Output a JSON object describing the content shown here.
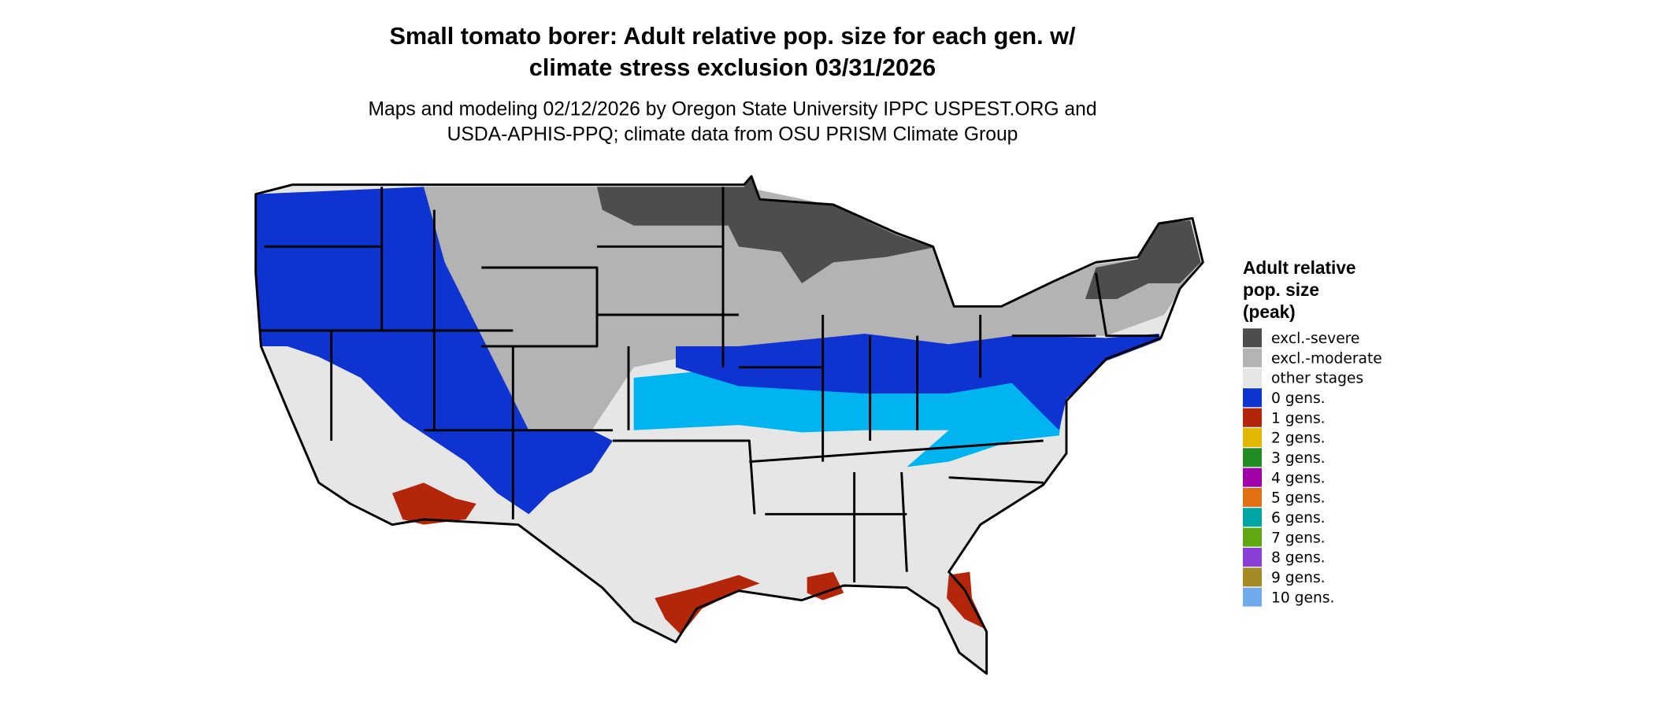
{
  "title": [
    "Small tomato borer: Adult relative pop. size for each gen. w/",
    "climate stress exclusion 03/31/2026"
  ],
  "subtitle": [
    "Maps and modeling 02/12/2026 by Oregon State University IPPC USPEST.ORG and",
    "USDA-APHIS-PPQ; climate data from OSU PRISM Climate Group"
  ],
  "legend": {
    "title": [
      "Adult relative",
      "pop. size",
      "(peak)"
    ],
    "items": [
      {
        "label": "excl.-severe",
        "color": "#4d4d4d"
      },
      {
        "label": "excl.-moderate",
        "color": "#b3b3b3"
      },
      {
        "label": "other stages",
        "color": "#e6e6e6"
      },
      {
        "label": "0 gens.",
        "color": "#0f33d0"
      },
      {
        "label": "1 gens.",
        "color": "#b3260a"
      },
      {
        "label": "2 gens.",
        "color": "#e0b800"
      },
      {
        "label": "3 gens.",
        "color": "#228b22"
      },
      {
        "label": "4 gens.",
        "color": "#a000a8"
      },
      {
        "label": "5 gens.",
        "color": "#e07014"
      },
      {
        "label": "6 gens.",
        "color": "#00a6a6"
      },
      {
        "label": "7 gens.",
        "color": "#5fa812"
      },
      {
        "label": "8 gens.",
        "color": "#8a3fd6"
      },
      {
        "label": "9 gens.",
        "color": "#a38a22"
      },
      {
        "label": "10 gens.",
        "color": "#72a9ea"
      }
    ]
  }
}
